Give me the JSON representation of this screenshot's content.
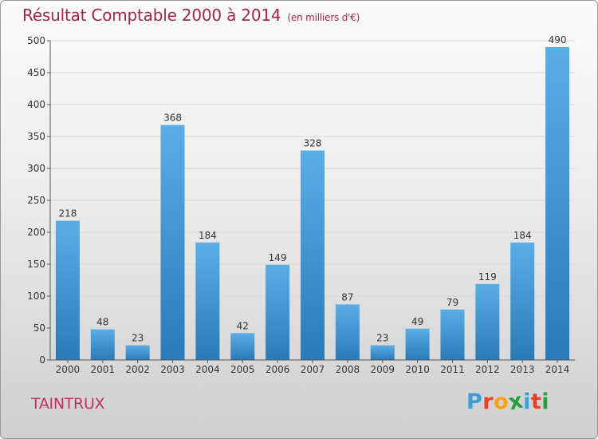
{
  "header": {
    "title": "Résultat Comptable 2000 à 2014",
    "subtitle": "(en milliers d'€)"
  },
  "footer": {
    "place": "TAINTRUX",
    "logo": "Proxiti",
    "logo_letters": [
      {
        "ch": "P",
        "color": "#3aa0da"
      },
      {
        "ch": "r",
        "color": "#e8402a"
      },
      {
        "ch": "o",
        "color": "#f4a31b"
      },
      {
        "ch": "x",
        "color": "#2a9d3d"
      },
      {
        "ch": "i",
        "color": "#3aa0da"
      },
      {
        "ch": "t",
        "color": "#e8402a"
      },
      {
        "ch": "i",
        "color": "#2a9d3d"
      }
    ]
  },
  "colors": {
    "bar_top": "#5aaee6",
    "bar_bottom": "#2a7ab8",
    "grid": "#d8d8d8",
    "axis": "#555555"
  },
  "chart_data": {
    "type": "bar",
    "title": "Résultat Comptable 2000 à 2014",
    "ylabel": "en milliers d'€",
    "categories": [
      "2000",
      "2001",
      "2002",
      "2003",
      "2004",
      "2005",
      "2006",
      "2007",
      "2008",
      "2009",
      "2010",
      "2011",
      "2012",
      "2013",
      "2014"
    ],
    "values": [
      218,
      48,
      23,
      368,
      184,
      42,
      149,
      328,
      87,
      23,
      49,
      79,
      119,
      184,
      490
    ],
    "ylim": [
      0,
      500
    ],
    "yticks": [
      0,
      50,
      100,
      150,
      200,
      250,
      300,
      350,
      400,
      450,
      500
    ],
    "grid": true
  }
}
